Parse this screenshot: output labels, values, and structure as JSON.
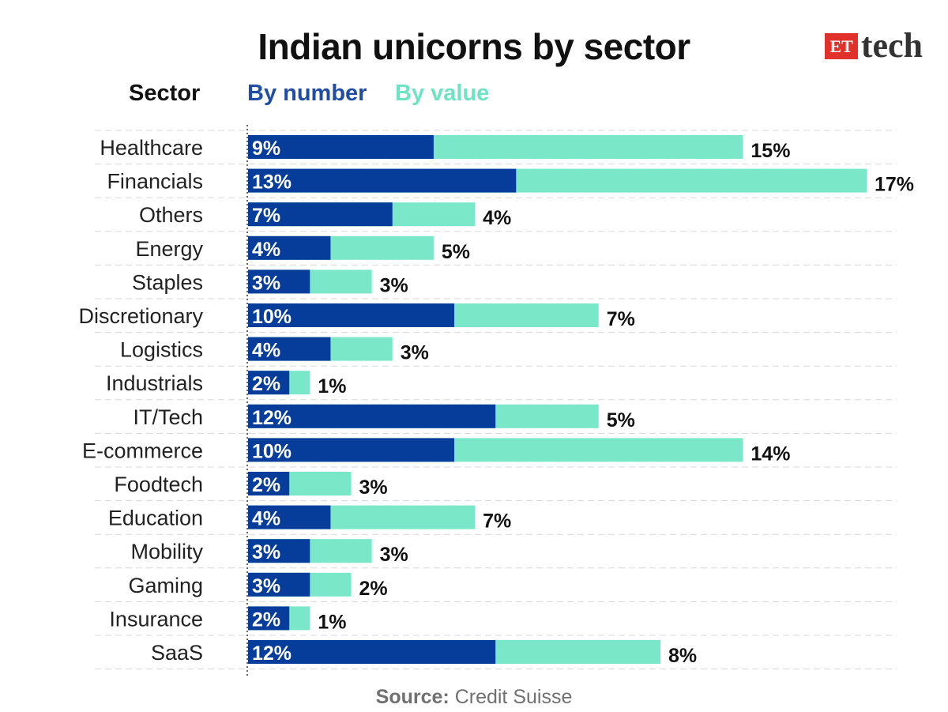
{
  "title": "Indian unicorns by sector",
  "logo": {
    "et": "ET",
    "tech": "tech"
  },
  "headers": {
    "sector": "Sector",
    "by_number": "By number",
    "by_value": "By value"
  },
  "source": {
    "label": "Source:",
    "text": "Credit Suisse"
  },
  "colors": {
    "by_number": "#073d9a",
    "by_value": "#7ae8c8",
    "grid": "#d8d8d8",
    "axis": "#333333"
  },
  "chart_data": {
    "type": "bar",
    "orientation": "horizontal",
    "title": "Indian unicorns by sector",
    "categories": [
      "Healthcare",
      "Financials",
      "Others",
      "Energy",
      "Staples",
      "Discretionary",
      "Logistics",
      "Industrials",
      "IT/Tech",
      "E-commerce",
      "Foodtech",
      "Education",
      "Mobility",
      "Gaming",
      "Insurance",
      "SaaS"
    ],
    "series": [
      {
        "name": "By number",
        "values": [
          9,
          13,
          7,
          4,
          3,
          10,
          4,
          2,
          12,
          10,
          2,
          4,
          3,
          3,
          2,
          12
        ]
      },
      {
        "name": "By value",
        "values": [
          15,
          17,
          4,
          5,
          3,
          7,
          3,
          1,
          5,
          14,
          3,
          7,
          3,
          2,
          1,
          8
        ]
      }
    ],
    "data_labels": {
      "By number": [
        "9%",
        "13%",
        "7%",
        "4%",
        "3%",
        "10%",
        "4%",
        "2%",
        "12%",
        "10%",
        "2%",
        "4%",
        "3%",
        "3%",
        "2%",
        "12%"
      ],
      "By value": [
        "15%",
        "17%",
        "4%",
        "5%",
        "3%",
        "7%",
        "3%",
        "1%",
        "5%",
        "14%",
        "3%",
        "7%",
        "3%",
        "2%",
        "1%",
        "8%"
      ]
    },
    "stacked": true,
    "grid": true,
    "legend": "top"
  }
}
